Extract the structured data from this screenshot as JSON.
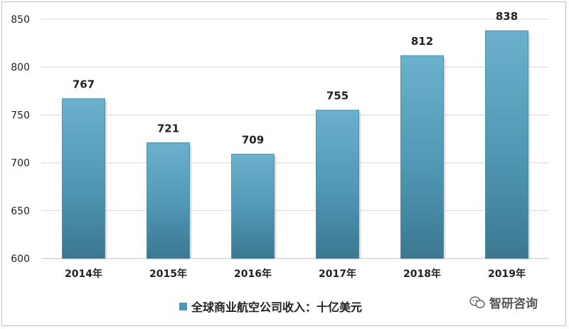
{
  "chart_data": {
    "type": "bar",
    "categories": [
      "2014年",
      "2015年",
      "2016年",
      "2017年",
      "2018年",
      "2019年"
    ],
    "series": [
      {
        "name": "全球商业航空公司收入：十亿美元",
        "values": [
          767,
          721,
          709,
          755,
          812,
          838
        ]
      }
    ],
    "ylim": [
      600,
      850
    ],
    "yticks": [
      600,
      650,
      700,
      750,
      800,
      850
    ],
    "grid": true,
    "legend_position": "bottom",
    "bar_color": "#4f97b4"
  },
  "brand": {
    "text": "智研咨询",
    "icon": "wechat-icon"
  }
}
